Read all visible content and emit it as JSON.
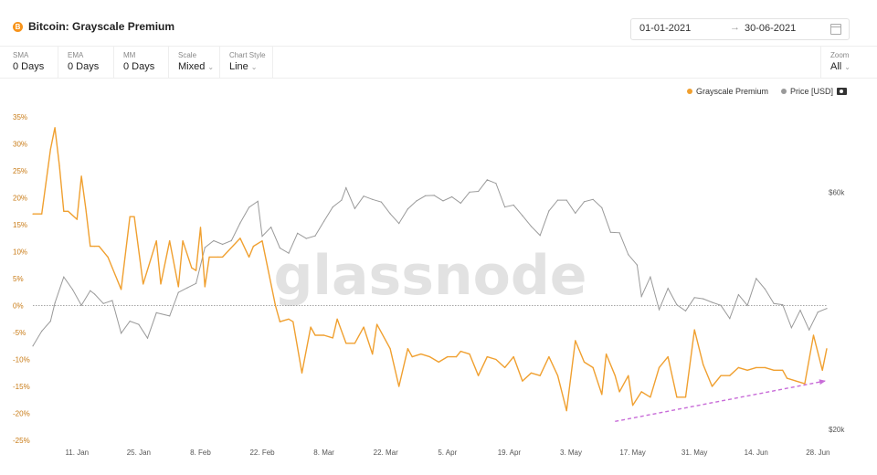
{
  "header": {
    "title": "Bitcoin: Grayscale Premium",
    "btc_icon_glyph": "B",
    "date_start": "01-01-2021",
    "date_arrow": "→",
    "date_end": "30-06-2021"
  },
  "toolbar": {
    "sma": {
      "label": "SMA",
      "value": "0 Days"
    },
    "ema": {
      "label": "EMA",
      "value": "0 Days"
    },
    "mm": {
      "label": "MM",
      "value": "0 Days"
    },
    "scale": {
      "label": "Scale",
      "value": "Mixed"
    },
    "chart_style": {
      "label": "Chart Style",
      "value": "Line"
    },
    "zoom": {
      "label": "Zoom",
      "value": "All"
    }
  },
  "watermark": "glassnode",
  "colors": {
    "premium": "#f0a030",
    "price": "#9a9a9a",
    "trend_arrow": "#c86cd8",
    "zero_line": "#888888"
  },
  "chart_data": {
    "type": "line",
    "title": "Bitcoin: Grayscale Premium",
    "legend_position": "top-right",
    "grid": false,
    "x_ticks": [
      "11. Jan",
      "25. Jan",
      "8. Feb",
      "22. Feb",
      "8. Mar",
      "22. Mar",
      "5. Apr",
      "19. Apr",
      "3. May",
      "17. May",
      "31. May",
      "14. Jun",
      "28. Jun"
    ],
    "x_tick_dates": [
      "2021-01-11",
      "2021-01-25",
      "2021-02-08",
      "2021-02-22",
      "2021-03-08",
      "2021-03-22",
      "2021-04-05",
      "2021-04-19",
      "2021-05-03",
      "2021-05-17",
      "2021-05-31",
      "2021-06-14",
      "2021-06-28"
    ],
    "x_range": [
      "2021-01-01",
      "2021-06-30"
    ],
    "y_left": {
      "ticks": [
        "35%",
        "30%",
        "25%",
        "20%",
        "15%",
        "10%",
        "5%",
        "0%",
        "-5%",
        "-10%",
        "-15%",
        "-20%",
        "-25%"
      ],
      "tick_values": [
        35,
        30,
        25,
        20,
        15,
        10,
        5,
        0,
        -5,
        -10,
        -15,
        -20,
        -25
      ],
      "range": [
        -25,
        35
      ]
    },
    "y_right": {
      "ticks": [
        "$60k",
        "$20k"
      ],
      "tick_values": [
        60000,
        20000
      ],
      "scale": "log",
      "range": [
        19000,
        85000
      ]
    },
    "series": [
      {
        "name": "Grayscale Premium",
        "axis": "left",
        "color": "#f0a030",
        "x": [
          "2021-01-01",
          "2021-01-03",
          "2021-01-05",
          "2021-01-06",
          "2021-01-07",
          "2021-01-08",
          "2021-01-09",
          "2021-01-11",
          "2021-01-12",
          "2021-01-13",
          "2021-01-14",
          "2021-01-15",
          "2021-01-16",
          "2021-01-18",
          "2021-01-21",
          "2021-01-23",
          "2021-01-24",
          "2021-01-26",
          "2021-01-29",
          "2021-01-30",
          "2021-02-01",
          "2021-02-03",
          "2021-02-04",
          "2021-02-06",
          "2021-02-07",
          "2021-02-08",
          "2021-02-09",
          "2021-02-10",
          "2021-02-12",
          "2021-02-13",
          "2021-02-17",
          "2021-02-19",
          "2021-02-20",
          "2021-02-22",
          "2021-02-25",
          "2021-02-26",
          "2021-02-28",
          "2021-03-01",
          "2021-03-03",
          "2021-03-05",
          "2021-03-06",
          "2021-03-08",
          "2021-03-10",
          "2021-03-11",
          "2021-03-13",
          "2021-03-15",
          "2021-03-17",
          "2021-03-19",
          "2021-03-20",
          "2021-03-23",
          "2021-03-25",
          "2021-03-27",
          "2021-03-28",
          "2021-03-30",
          "2021-04-01",
          "2021-04-03",
          "2021-04-05",
          "2021-04-07",
          "2021-04-08",
          "2021-04-10",
          "2021-04-12",
          "2021-04-14",
          "2021-04-16",
          "2021-04-18",
          "2021-04-20",
          "2021-04-22",
          "2021-04-24",
          "2021-04-26",
          "2021-04-28",
          "2021-04-30",
          "2021-05-02",
          "2021-05-04",
          "2021-05-06",
          "2021-05-08",
          "2021-05-10",
          "2021-05-11",
          "2021-05-13",
          "2021-05-14",
          "2021-05-16",
          "2021-05-17",
          "2021-05-19",
          "2021-05-21",
          "2021-05-23",
          "2021-05-25",
          "2021-05-27",
          "2021-05-29",
          "2021-05-31",
          "2021-06-02",
          "2021-06-04",
          "2021-06-06",
          "2021-06-08",
          "2021-06-10",
          "2021-06-12",
          "2021-06-14",
          "2021-06-16",
          "2021-06-18",
          "2021-06-20",
          "2021-06-21",
          "2021-06-23",
          "2021-06-25",
          "2021-06-27",
          "2021-06-29",
          "2021-06-30"
        ],
        "values": [
          17.0,
          17.0,
          29.0,
          33.0,
          26.0,
          17.5,
          17.5,
          16.0,
          24.0,
          18.0,
          11.0,
          11.0,
          11.0,
          9.0,
          3.0,
          16.5,
          16.5,
          4.0,
          12.0,
          4.0,
          12.0,
          3.5,
          12.0,
          7.0,
          6.5,
          14.5,
          3.5,
          9.0,
          9.0,
          9.0,
          12.5,
          9.0,
          11.0,
          12.0,
          0.0,
          -3.0,
          -2.5,
          -3.0,
          -12.5,
          -4.0,
          -5.5,
          -5.5,
          -6.0,
          -2.5,
          -7.0,
          -7.0,
          -4.0,
          -9.0,
          -3.5,
          -8.0,
          -15.0,
          -8.0,
          -9.5,
          -9.0,
          -9.5,
          -10.5,
          -9.5,
          -9.5,
          -8.5,
          -9.0,
          -13.0,
          -9.5,
          -10.0,
          -11.5,
          -9.5,
          -14.0,
          -12.5,
          -13.0,
          -9.5,
          -13.0,
          -19.5,
          -6.5,
          -10.5,
          -11.5,
          -16.5,
          -9.0,
          -13.0,
          -16.0,
          -13.0,
          -18.5,
          -16.0,
          -17.0,
          -11.5,
          -9.5,
          -17.0,
          -17.0,
          -4.5,
          -11.0,
          -15.0,
          -13.0,
          -13.0,
          -11.5,
          -12.0,
          -11.5,
          -11.5,
          -12.0,
          -12.0,
          -13.5,
          -14.0,
          -14.5,
          -5.5,
          -12.0,
          -8.0
        ]
      },
      {
        "name": "Price [USD]",
        "axis": "right",
        "color": "#9a9a9a",
        "x": [
          "2021-01-01",
          "2021-01-03",
          "2021-01-05",
          "2021-01-06",
          "2021-01-08",
          "2021-01-10",
          "2021-01-12",
          "2021-01-14",
          "2021-01-15",
          "2021-01-17",
          "2021-01-19",
          "2021-01-21",
          "2021-01-23",
          "2021-01-25",
          "2021-01-27",
          "2021-01-29",
          "2021-02-01",
          "2021-02-03",
          "2021-02-05",
          "2021-02-07",
          "2021-02-09",
          "2021-02-11",
          "2021-02-13",
          "2021-02-15",
          "2021-02-17",
          "2021-02-19",
          "2021-02-21",
          "2021-02-22",
          "2021-02-24",
          "2021-02-26",
          "2021-02-28",
          "2021-03-02",
          "2021-03-04",
          "2021-03-06",
          "2021-03-08",
          "2021-03-10",
          "2021-03-12",
          "2021-03-13",
          "2021-03-15",
          "2021-03-17",
          "2021-03-19",
          "2021-03-21",
          "2021-03-23",
          "2021-03-25",
          "2021-03-27",
          "2021-03-29",
          "2021-03-31",
          "2021-04-02",
          "2021-04-04",
          "2021-04-06",
          "2021-04-08",
          "2021-04-10",
          "2021-04-12",
          "2021-04-14",
          "2021-04-16",
          "2021-04-18",
          "2021-04-20",
          "2021-04-22",
          "2021-04-24",
          "2021-04-26",
          "2021-04-28",
          "2021-04-30",
          "2021-05-02",
          "2021-05-04",
          "2021-05-06",
          "2021-05-08",
          "2021-05-10",
          "2021-05-12",
          "2021-05-14",
          "2021-05-16",
          "2021-05-18",
          "2021-05-19",
          "2021-05-21",
          "2021-05-23",
          "2021-05-25",
          "2021-05-27",
          "2021-05-29",
          "2021-05-31",
          "2021-06-02",
          "2021-06-04",
          "2021-06-06",
          "2021-06-08",
          "2021-06-10",
          "2021-06-12",
          "2021-06-14",
          "2021-06-16",
          "2021-06-18",
          "2021-06-20",
          "2021-06-22",
          "2021-06-24",
          "2021-06-26",
          "2021-06-28",
          "2021-06-30"
        ],
        "values": [
          29400,
          31500,
          33000,
          35900,
          40500,
          38200,
          35500,
          38000,
          37400,
          35800,
          36300,
          31200,
          33000,
          32500,
          30500,
          34300,
          33800,
          37700,
          38500,
          39300,
          46400,
          47900,
          47100,
          47900,
          52000,
          55900,
          57500,
          48900,
          51000,
          46300,
          45200,
          49600,
          48400,
          49000,
          52400,
          56000,
          57800,
          61200,
          55600,
          58900,
          58000,
          57300,
          54300,
          51900,
          55500,
          57600,
          59000,
          59100,
          57600,
          58700,
          57000,
          60000,
          60200,
          63500,
          62500,
          56000,
          56500,
          53800,
          51200,
          49100,
          55000,
          57800,
          57800,
          54400,
          57400,
          58000,
          55800,
          49800,
          49700,
          44900,
          42800,
          37000,
          40500,
          34800,
          38400,
          35600,
          34600,
          36800,
          36600,
          36000,
          35500,
          33400,
          37300,
          35500,
          40200,
          38300,
          35800,
          35600,
          32000,
          34700,
          31700,
          34400,
          35000
        ]
      }
    ],
    "annotations": [
      {
        "type": "trend-arrow",
        "from": [
          "2021-05-13",
          -21.5
        ],
        "to": [
          "2021-06-30",
          -14.0
        ],
        "color": "#c86cd8",
        "style": "dashed"
      }
    ]
  }
}
